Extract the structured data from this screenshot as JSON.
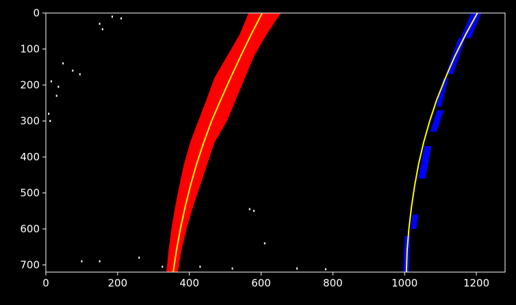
{
  "chart_data": {
    "type": "scatter",
    "title": "",
    "xlabel": "",
    "ylabel": "",
    "xlim": [
      0,
      1280
    ],
    "ylim": [
      720,
      0
    ],
    "xticks": [
      0,
      200,
      400,
      600,
      800,
      1000,
      1200
    ],
    "yticks": [
      0,
      100,
      200,
      300,
      400,
      500,
      600,
      700
    ],
    "grid": false,
    "colors": {
      "background": "#000000",
      "axes": "#ffffff",
      "left_lane_pixels": "#ff0000",
      "right_lane_pixels": "#0000ff",
      "noise_pixels": "#ffffff",
      "fit_line": "#ffff00"
    },
    "series": [
      {
        "name": "left-lane-fit",
        "kind": "line",
        "y": [
          0,
          60,
          120,
          180,
          240,
          300,
          360,
          420,
          480,
          540,
          600,
          660,
          720
        ],
        "x": [
          603,
          572,
          543,
          515,
          488,
          462,
          440,
          420,
          403,
          388,
          375,
          364,
          355
        ]
      },
      {
        "name": "right-lane-fit",
        "kind": "line",
        "y": [
          0,
          60,
          120,
          180,
          240,
          300,
          360,
          420,
          480,
          540,
          600,
          660,
          720
        ],
        "x": [
          1203,
          1170,
          1140,
          1114,
          1090,
          1070,
          1053,
          1039,
          1028,
          1019,
          1012,
          1007,
          1005
        ]
      },
      {
        "name": "left-lane-pixels",
        "kind": "band",
        "y": [
          0,
          60,
          120,
          180,
          240,
          300,
          360,
          420,
          480,
          540,
          600,
          660,
          720
        ],
        "x_min": [
          565,
          540,
          505,
          470,
          448,
          425,
          402,
          385,
          372,
          360,
          350,
          342,
          336
        ],
        "x_max": [
          655,
          615,
          580,
          555,
          530,
          505,
          470,
          450,
          430,
          410,
          392,
          378,
          368
        ]
      },
      {
        "name": "right-lane-pixels",
        "kind": "segments",
        "segments": [
          {
            "y": [
              0,
              70
            ],
            "x_center": [
              1200,
              1170
            ],
            "half_width": 14
          },
          {
            "y": [
              70,
              170
            ],
            "x_center": [
              1160,
              1125
            ],
            "half_width": 10
          },
          {
            "y": [
              180,
              260
            ],
            "x_center": [
              1115,
              1095
            ],
            "half_width": 7
          },
          {
            "y": [
              270,
              330
            ],
            "x_center": [
              1100,
              1080
            ],
            "half_width": 9
          },
          {
            "y": [
              370,
              460
            ],
            "x_center": [
              1065,
              1048
            ],
            "half_width": 10
          },
          {
            "y": [
              560,
              600
            ],
            "x_center": [
              1030,
              1025
            ],
            "half_width": 8
          },
          {
            "y": [
              620,
              720
            ],
            "x_center": [
              1008,
              1004
            ],
            "half_width": 8
          }
        ]
      },
      {
        "name": "noise-pixels",
        "kind": "points",
        "points": [
          [
            150,
            30
          ],
          [
            158,
            45
          ],
          [
            185,
            10
          ],
          [
            210,
            15
          ],
          [
            48,
            140
          ],
          [
            75,
            160
          ],
          [
            95,
            170
          ],
          [
            15,
            190
          ],
          [
            35,
            205
          ],
          [
            30,
            230
          ],
          [
            8,
            280
          ],
          [
            12,
            300
          ],
          [
            568,
            545
          ],
          [
            580,
            550
          ],
          [
            610,
            640
          ],
          [
            100,
            690
          ],
          [
            150,
            690
          ],
          [
            260,
            680
          ],
          [
            325,
            705
          ],
          [
            430,
            705
          ],
          [
            520,
            710
          ],
          [
            700,
            710
          ],
          [
            780,
            712
          ]
        ]
      }
    ]
  }
}
